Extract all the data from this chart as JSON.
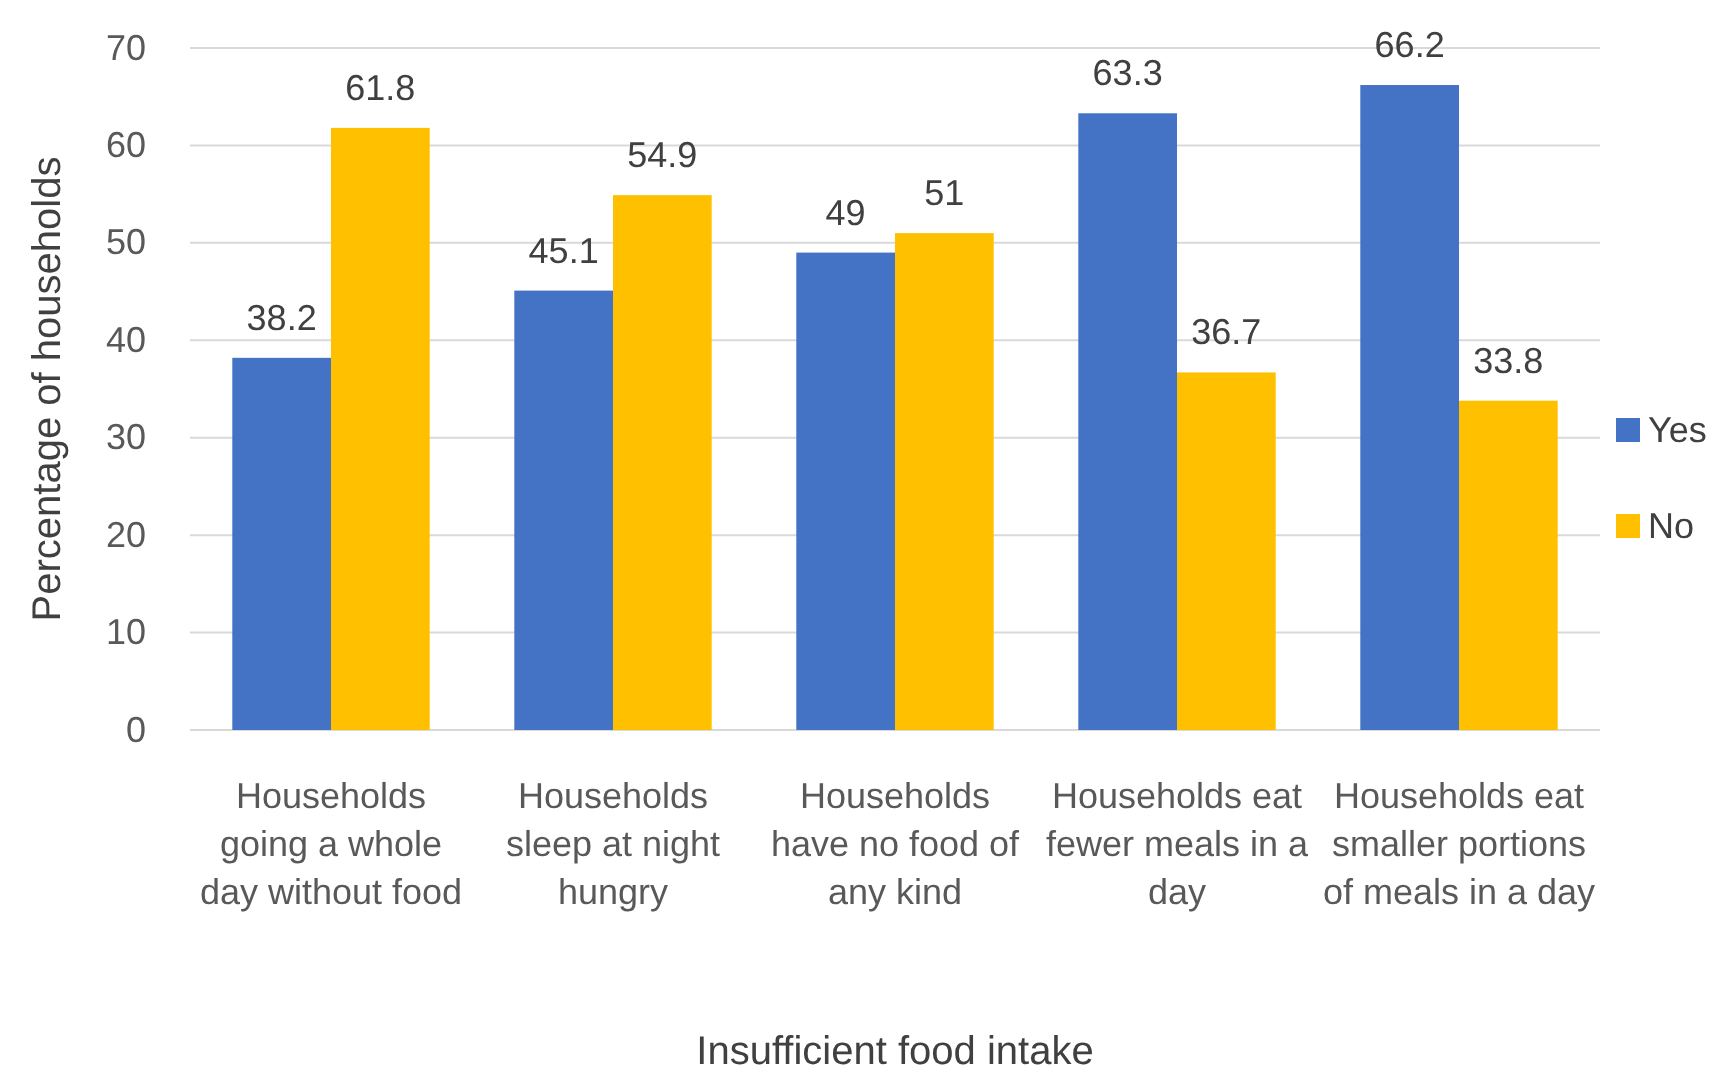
{
  "chart_data": {
    "type": "bar",
    "xlabel": "Insufficient food intake",
    "ylabel": "Percentage of households",
    "categories": [
      "Households going a whole day without food",
      "Households sleep at night hungry",
      "Households have no food of any kind",
      "Households eat fewer meals in a day",
      "Households eat smaller portions of meals in a day"
    ],
    "series": [
      {
        "name": "Yes",
        "color": "#4472c4",
        "values": [
          38.2,
          45.1,
          49,
          63.3,
          66.2
        ]
      },
      {
        "name": "No",
        "color": "#ffc000",
        "values": [
          61.8,
          54.9,
          51,
          36.7,
          33.8
        ]
      }
    ],
    "ylim": [
      0,
      70
    ],
    "yticks": [
      0,
      10,
      20,
      30,
      40,
      50,
      60,
      70
    ],
    "grid": "y",
    "legend": "right",
    "data_labels": true
  }
}
